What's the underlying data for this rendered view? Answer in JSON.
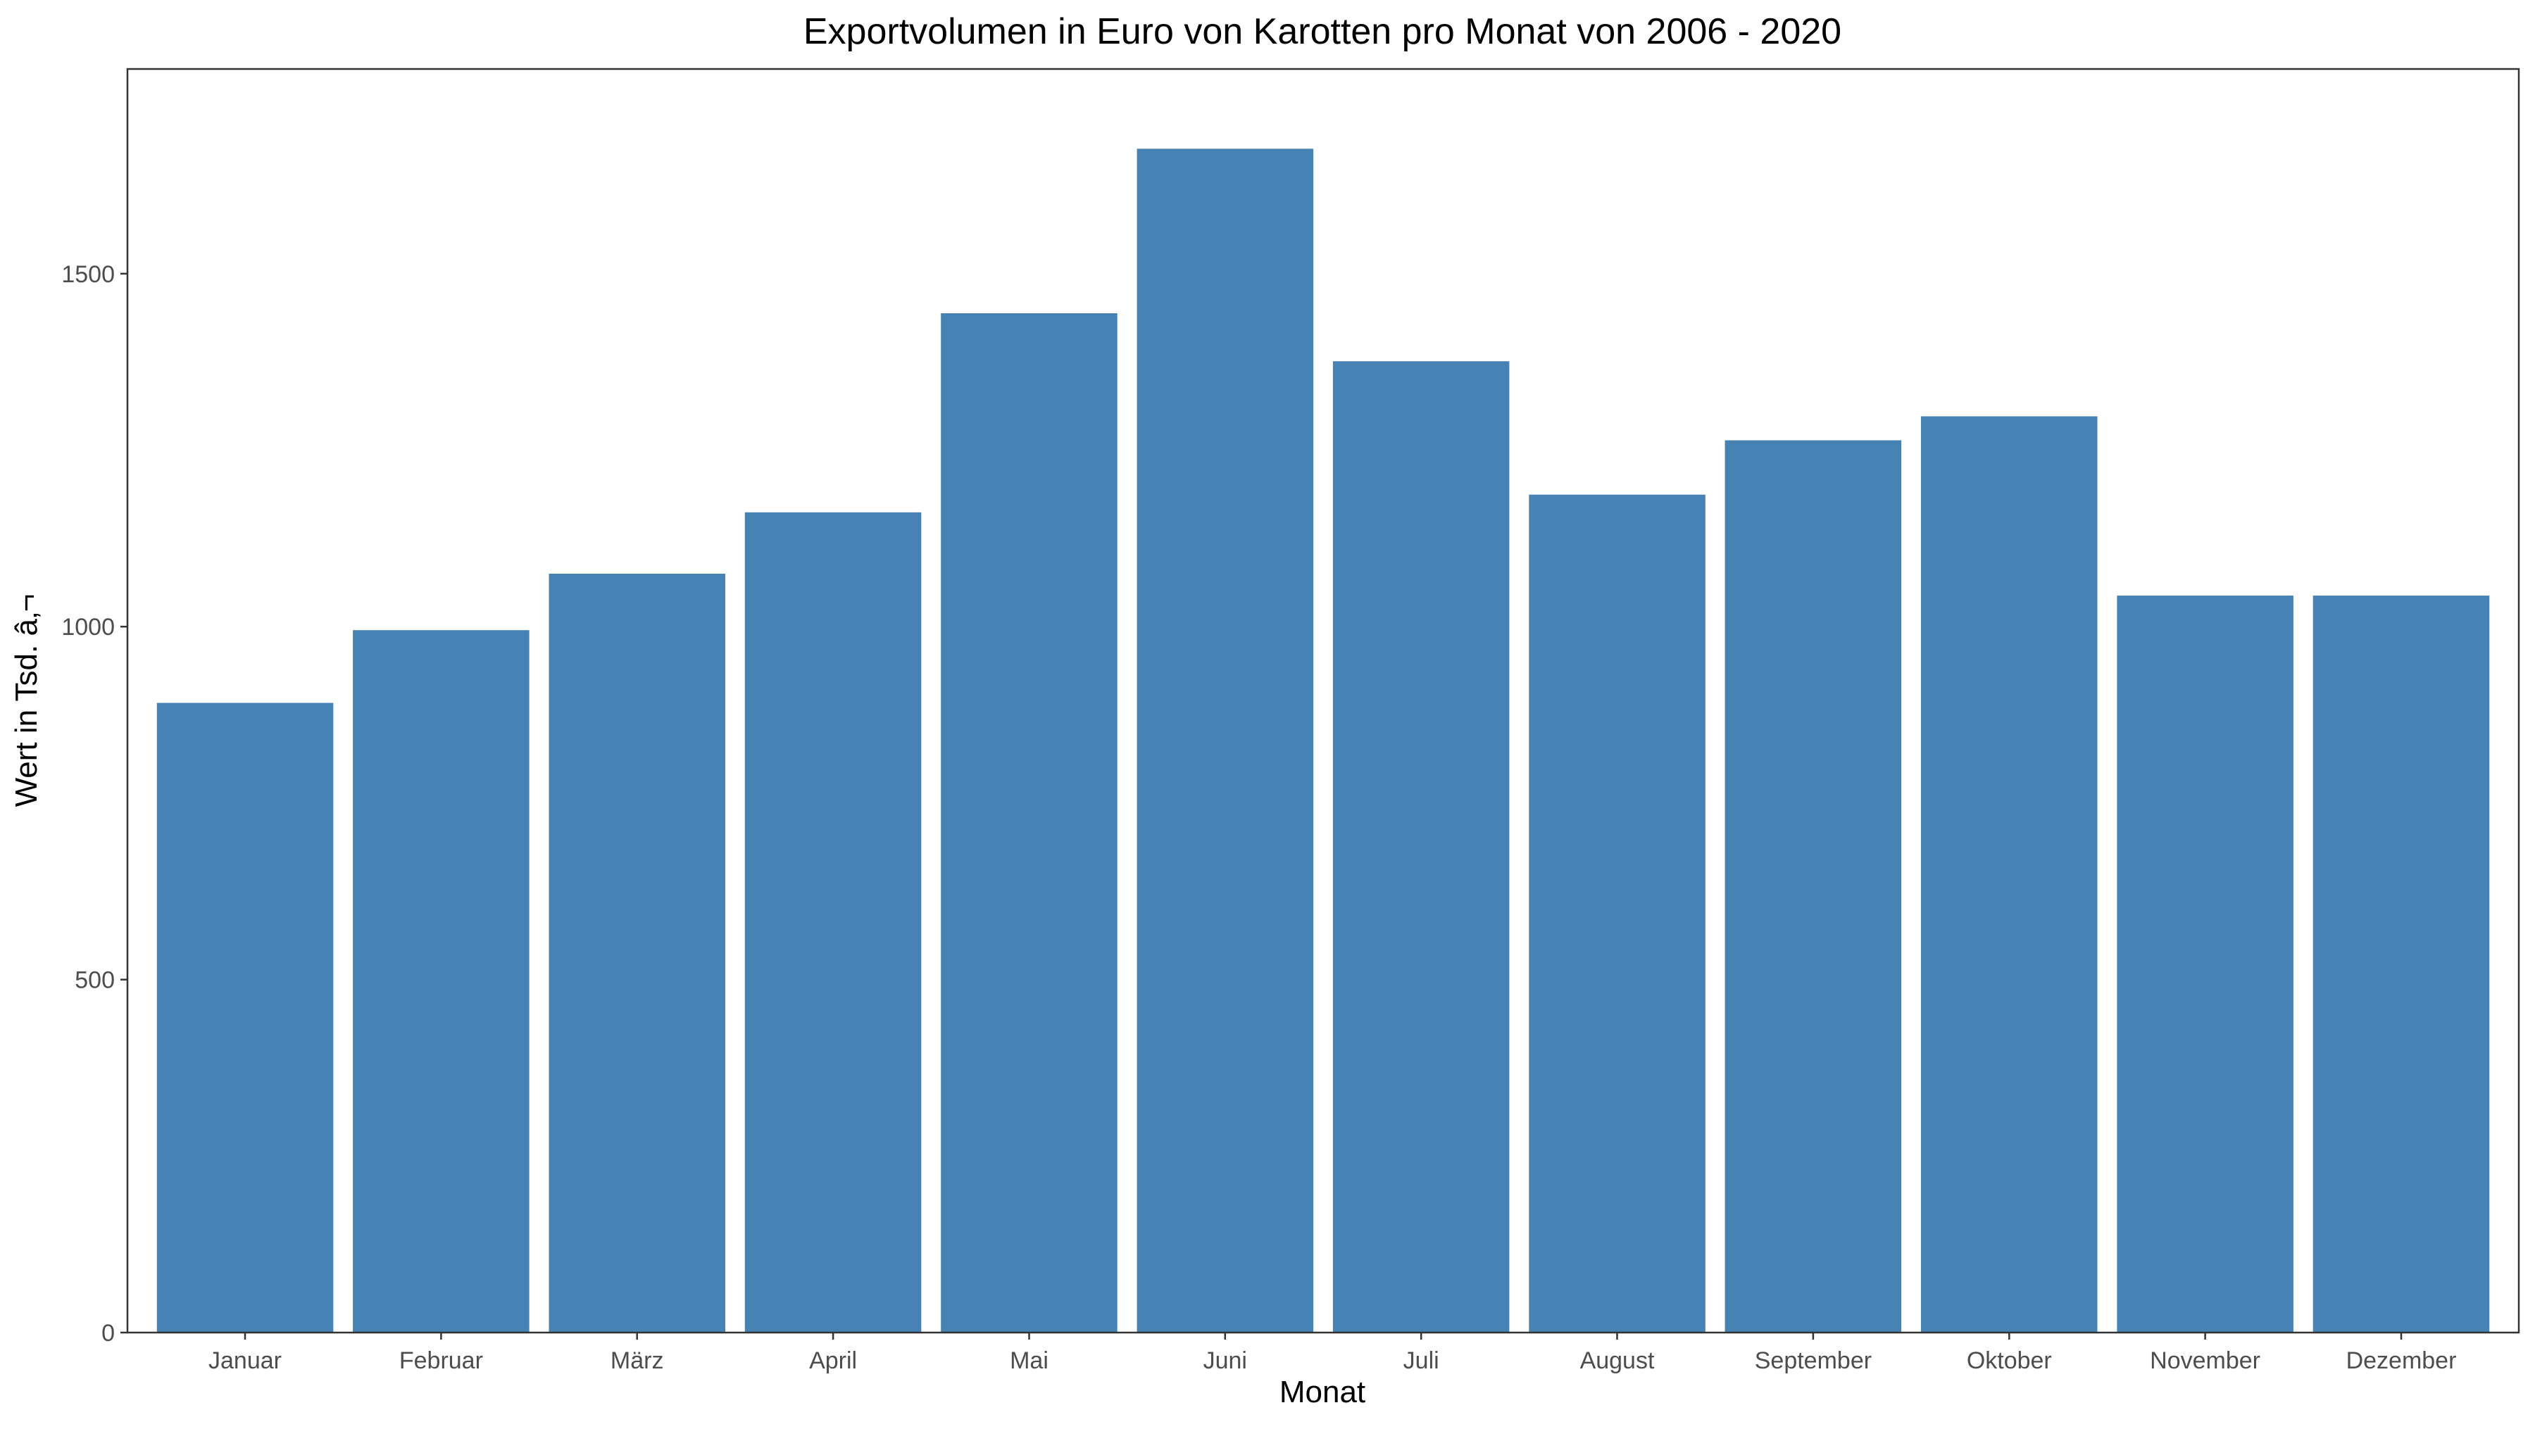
{
  "chart_data": {
    "type": "bar",
    "title": "Exportvolumen in Euro von Karotten pro Monat von 2006 - 2020",
    "xlabel": "Monat",
    "ylabel": "Wert in Tsd. â‚¬",
    "categories": [
      "Januar",
      "Februar",
      "März",
      "April",
      "Mai",
      "Juni",
      "Juli",
      "August",
      "September",
      "Oktober",
      "November",
      "Dezember"
    ],
    "values": [
      892,
      995,
      1075,
      1162,
      1444,
      1677,
      1376,
      1187,
      1264,
      1298,
      1044,
      1044
    ],
    "ylim": [
      0,
      1790
    ],
    "yticks": [
      0,
      500,
      1000,
      1500
    ],
    "grid": false,
    "legend": "none",
    "bar_color": "#4682B4"
  }
}
